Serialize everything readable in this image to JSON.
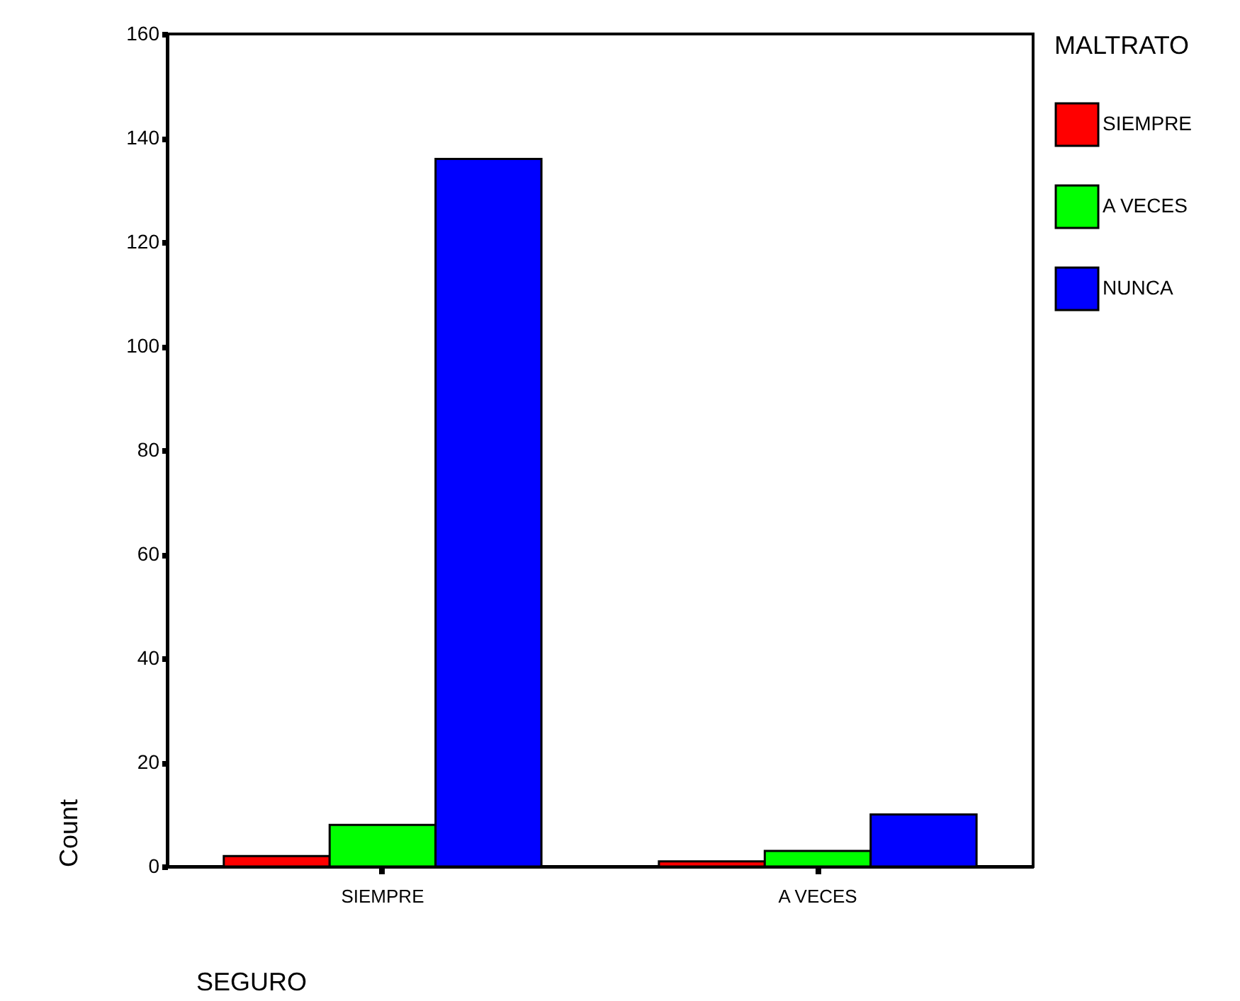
{
  "chart_data": {
    "type": "bar",
    "xlabel": "SEGURO",
    "ylabel": "Count",
    "legend_title": "MALTRATO",
    "categories": [
      "SIEMPRE",
      "A VECES"
    ],
    "series": [
      {
        "name": "SIEMPRE",
        "color": "#ff0000",
        "values": [
          2,
          1
        ]
      },
      {
        "name": "A VECES",
        "color": "#00ff00",
        "values": [
          8,
          3
        ]
      },
      {
        "name": "NUNCA",
        "color": "#0000ff",
        "values": [
          136,
          10
        ]
      }
    ],
    "ylim": [
      0,
      160
    ],
    "yticks": [
      0,
      20,
      40,
      60,
      80,
      100,
      120,
      140,
      160
    ],
    "grid": false,
    "legend": "right"
  }
}
